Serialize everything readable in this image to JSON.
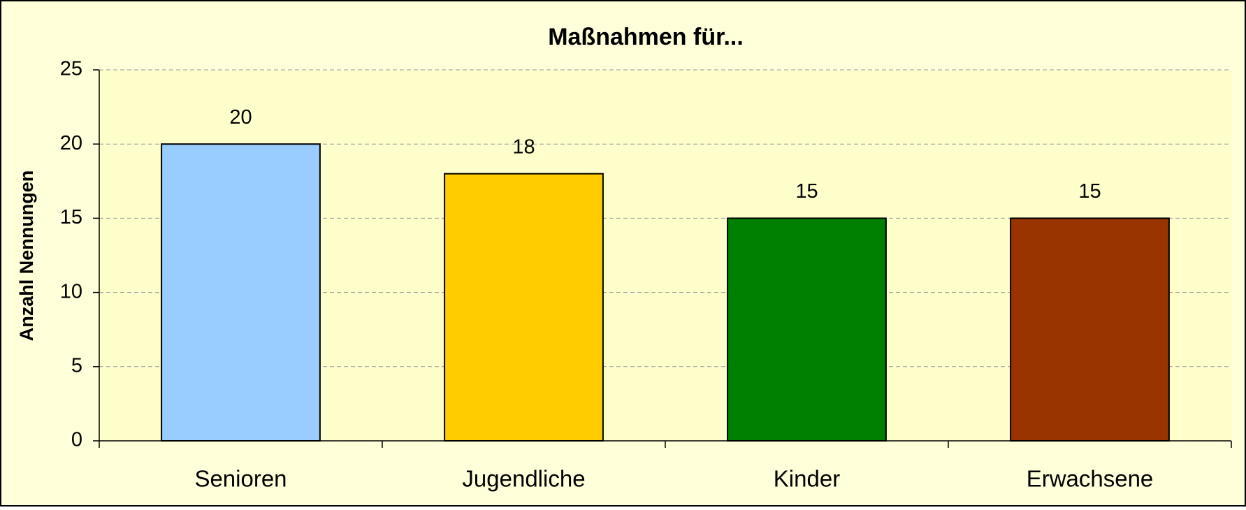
{
  "chart_data": {
    "type": "bar",
    "title": "Maßnahmen für...",
    "y_label": "Anzahl Nennungen",
    "categories": [
      "Senioren",
      "Jugendliche",
      "Kinder",
      "Erwachsene"
    ],
    "values": [
      20,
      18,
      15,
      15
    ],
    "colors": [
      "#99ccff",
      "#ffcc00",
      "#008000",
      "#993300"
    ],
    "ylim": [
      0,
      25
    ],
    "yticks": [
      0,
      5,
      10,
      15,
      20,
      25
    ],
    "grid": true
  }
}
